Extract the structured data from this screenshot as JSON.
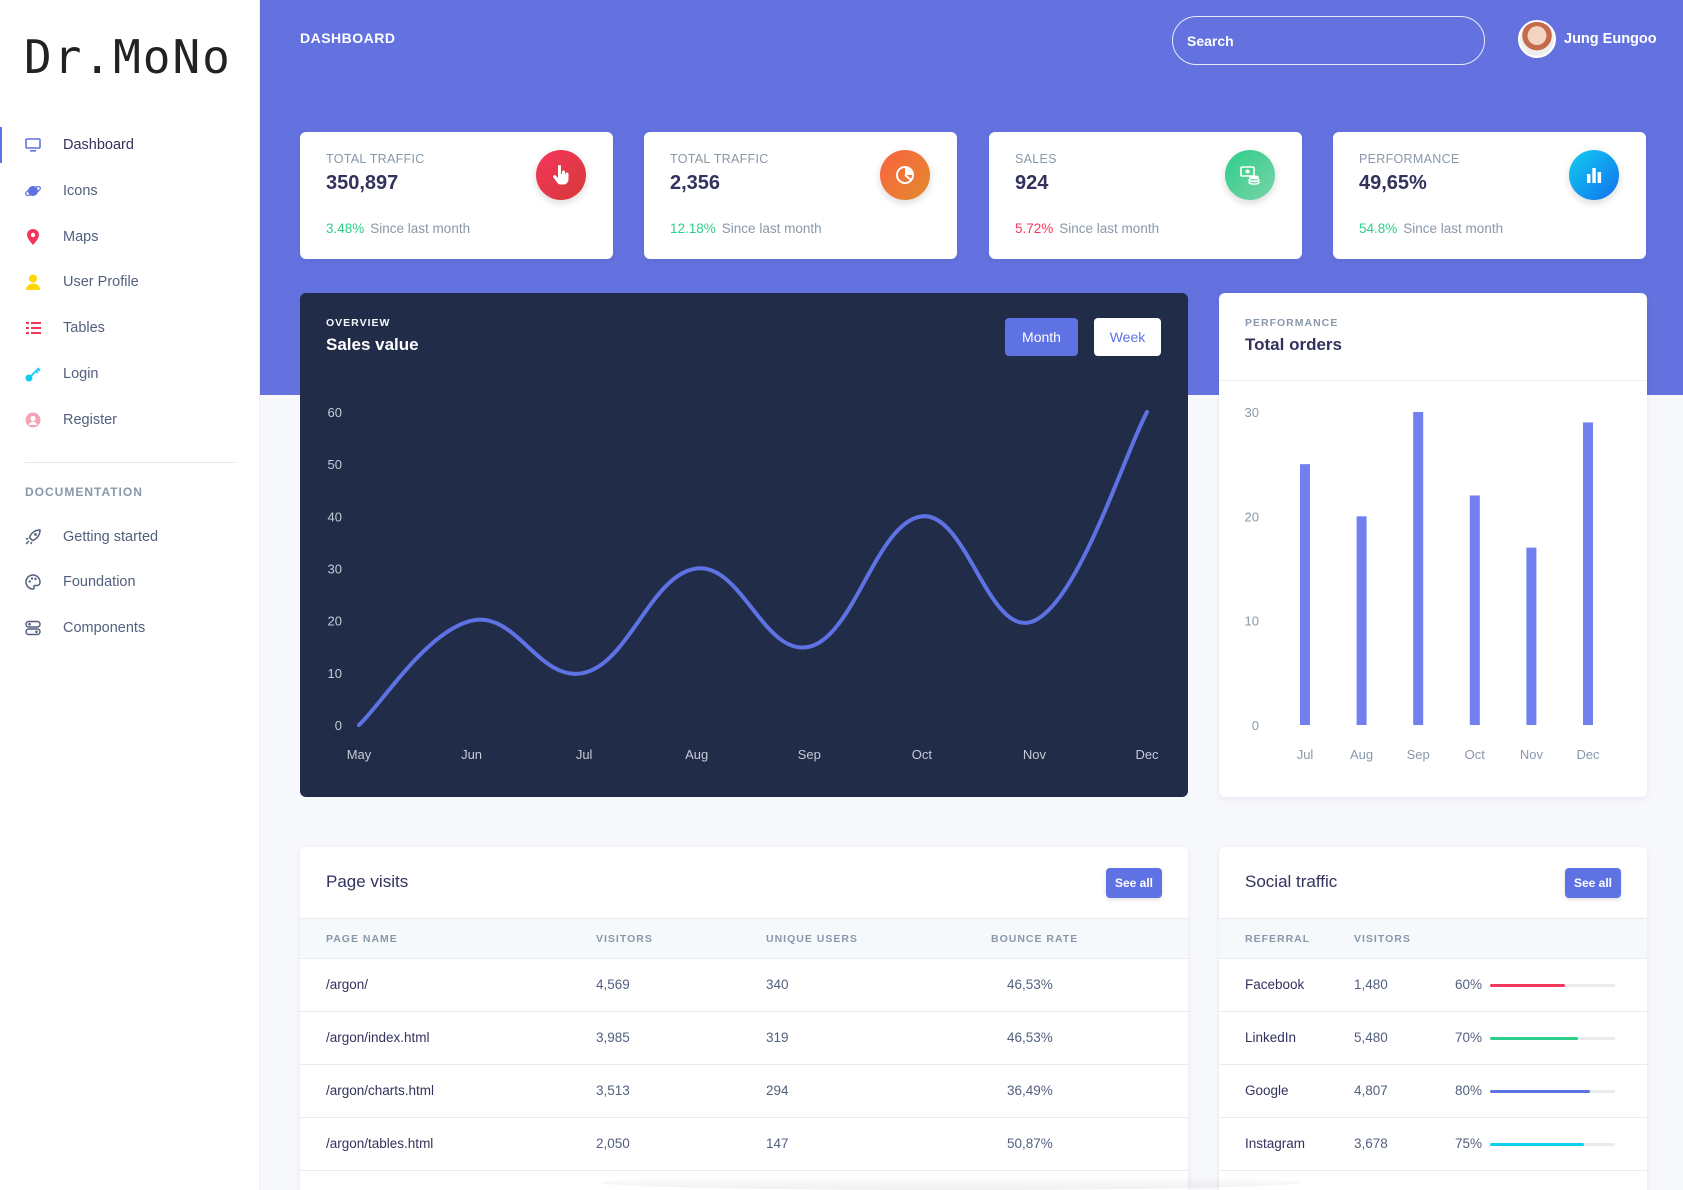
{
  "logo": "Dr.MoNo",
  "sidebar": {
    "items": [
      {
        "label": "Dashboard",
        "icon": "tv-icon",
        "color": "#5e72e4"
      },
      {
        "label": "Icons",
        "icon": "planet-icon",
        "color": "#5e72e4"
      },
      {
        "label": "Maps",
        "icon": "pin-icon",
        "color": "#f5365c"
      },
      {
        "label": "User Profile",
        "icon": "user-icon",
        "color": "#ffd600"
      },
      {
        "label": "Tables",
        "icon": "list-icon",
        "color": "#f5365c"
      },
      {
        "label": "Login",
        "icon": "key-icon",
        "color": "#11cdef"
      },
      {
        "label": "Register",
        "icon": "circle-user-icon",
        "color": "#f3a4b5"
      }
    ],
    "doc_heading": "DOCUMENTATION",
    "doc_items": [
      {
        "label": "Getting started",
        "icon": "rocket-icon"
      },
      {
        "label": "Foundation",
        "icon": "palette-icon"
      },
      {
        "label": "Components",
        "icon": "components-icon"
      }
    ]
  },
  "header": {
    "title": "DASHBOARD",
    "search_placeholder": "Search",
    "user_name": "Jung Eungoo"
  },
  "stats": [
    {
      "label": "TOTAL TRAFFIC",
      "value": "350,897",
      "pct": "3.48%",
      "pct_color": "#2dce89",
      "since": "Since last month",
      "icon": "hand-pointer-icon",
      "icon_bg": "linear-gradient(135deg,#f5365c,#d63939)"
    },
    {
      "label": "TOTAL TRAFFIC",
      "value": "2,356",
      "pct": "12.18%",
      "pct_color": "#2dce89",
      "since": "Since last month",
      "icon": "pie-chart-icon",
      "icon_bg": "linear-gradient(135deg,#fb6340,#e08a2c)"
    },
    {
      "label": "SALES",
      "value": "924",
      "pct": "5.72%",
      "pct_color": "#f5365c",
      "since": "Since last month",
      "icon": "money-coins-icon",
      "icon_bg": "linear-gradient(135deg,#2dce89,#7ad3a8)"
    },
    {
      "label": "PERFORMANCE",
      "value": "49,65%",
      "pct": "54.8%",
      "pct_color": "#2dce89",
      "since": "Since last month",
      "icon": "bar-chart-icon",
      "icon_bg": "linear-gradient(135deg,#11cdef,#1171ef)"
    }
  ],
  "sales": {
    "kicker": "OVERVIEW",
    "title": "Sales value",
    "btn_month": "Month",
    "btn_week": "Week"
  },
  "orders": {
    "kicker": "PERFORMANCE",
    "title": "Total orders"
  },
  "chart_data": [
    {
      "type": "line",
      "title": "Sales value",
      "x": [
        "May",
        "Jun",
        "Jul",
        "Aug",
        "Sep",
        "Oct",
        "Nov",
        "Dec"
      ],
      "values": [
        0,
        20,
        10,
        30,
        15,
        40,
        20,
        60
      ],
      "ylim": [
        0,
        60
      ],
      "yticks": [
        0,
        10,
        20,
        30,
        40,
        50,
        60
      ],
      "grid": false,
      "color": "#5e72e4"
    },
    {
      "type": "bar",
      "title": "Total orders",
      "categories": [
        "Jul",
        "Aug",
        "Sep",
        "Oct",
        "Nov",
        "Dec"
      ],
      "values": [
        25,
        20,
        30,
        22,
        17,
        29
      ],
      "ylim": [
        0,
        30
      ],
      "yticks": [
        0,
        10,
        20,
        30
      ],
      "grid": false,
      "color": "#7180ee"
    }
  ],
  "page_visits": {
    "title": "Page visits",
    "see_all": "See all",
    "headers": [
      "PAGE NAME",
      "VISITORS",
      "UNIQUE USERS",
      "BOUNCE RATE"
    ],
    "rows": [
      [
        "/argon/",
        "4,569",
        "340",
        "46,53%"
      ],
      [
        "/argon/index.html",
        "3,985",
        "319",
        "46,53%"
      ],
      [
        "/argon/charts.html",
        "3,513",
        "294",
        "36,49%"
      ],
      [
        "/argon/tables.html",
        "2,050",
        "147",
        "50,87%"
      ]
    ]
  },
  "social_traffic": {
    "title": "Social traffic",
    "see_all": "See all",
    "headers": [
      "REFERRAL",
      "VISITORS"
    ],
    "rows": [
      {
        "referral": "Facebook",
        "visitors": "1,480",
        "pct": "60%",
        "progress": 0.6,
        "color": "#f5365c"
      },
      {
        "referral": "LinkedIn",
        "visitors": "5,480",
        "pct": "70%",
        "progress": 0.7,
        "color": "#2dce89"
      },
      {
        "referral": "Google",
        "visitors": "4,807",
        "pct": "80%",
        "progress": 0.8,
        "color": "#5e72e4"
      },
      {
        "referral": "Instagram",
        "visitors": "3,678",
        "pct": "75%",
        "progress": 0.75,
        "color": "#11cdef"
      }
    ]
  }
}
